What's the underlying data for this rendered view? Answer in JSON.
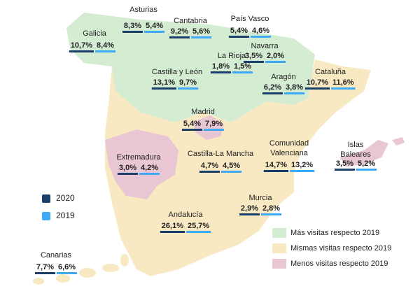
{
  "years": [
    {
      "label": "2020",
      "color": "#1b3f6b"
    },
    {
      "label": "2019",
      "color": "#3fa9f5"
    }
  ],
  "categories": [
    {
      "label": "Más visitas respecto 2019",
      "color": "#d4ecd2"
    },
    {
      "label": "Mismas visitas respecto 2019",
      "color": "#f8e9c3"
    },
    {
      "label": "Menos visitas respecto 2019",
      "color": "#e9c6d3"
    }
  ],
  "regions": [
    {
      "name": "Asturias",
      "v2020": "8,3%",
      "v2019": "5,4%"
    },
    {
      "name": "Galicia",
      "v2020": "10,7%",
      "v2019": "8,4%"
    },
    {
      "name": "Cantabria",
      "v2020": "9,2%",
      "v2019": "5,6%"
    },
    {
      "name": "País Vasco",
      "v2020": "5,4%",
      "v2019": "4,6%"
    },
    {
      "name": "Navarra",
      "v2020": "3,5%",
      "v2019": "2,0%"
    },
    {
      "name": "La Rioja",
      "v2020": "1,8%",
      "v2019": "1,5%"
    },
    {
      "name": "Castilla  y León",
      "v2020": "13,1%",
      "v2019": "9,7%"
    },
    {
      "name": "Aragón",
      "v2020": "6,2%",
      "v2019": "3,8%"
    },
    {
      "name": "Cataluña",
      "v2020": "10,7%",
      "v2019": "11,6%"
    },
    {
      "name": "Madrid",
      "v2020": "5,4%",
      "v2019": "7,9%"
    },
    {
      "name": "Extremadura",
      "v2020": "3,0%",
      "v2019": "4,2%"
    },
    {
      "name": "Castilla-La  Mancha",
      "v2020": "4,7%",
      "v2019": "4,5%"
    },
    {
      "name": [
        "Comunidad",
        "Valenciana"
      ],
      "v2020": "14,7%",
      "v2019": "13,2%"
    },
    {
      "name": [
        "Islas",
        "Baleares"
      ],
      "v2020": "3,5%",
      "v2019": "5,2%"
    },
    {
      "name": "Murcia",
      "v2020": "2,9%",
      "v2019": "2,8%"
    },
    {
      "name": "Andalucía",
      "v2020": "26,1%",
      "v2019": "25,7%"
    },
    {
      "name": "Canarias",
      "v2020": "7,7%",
      "v2019": "6,6%"
    }
  ]
}
